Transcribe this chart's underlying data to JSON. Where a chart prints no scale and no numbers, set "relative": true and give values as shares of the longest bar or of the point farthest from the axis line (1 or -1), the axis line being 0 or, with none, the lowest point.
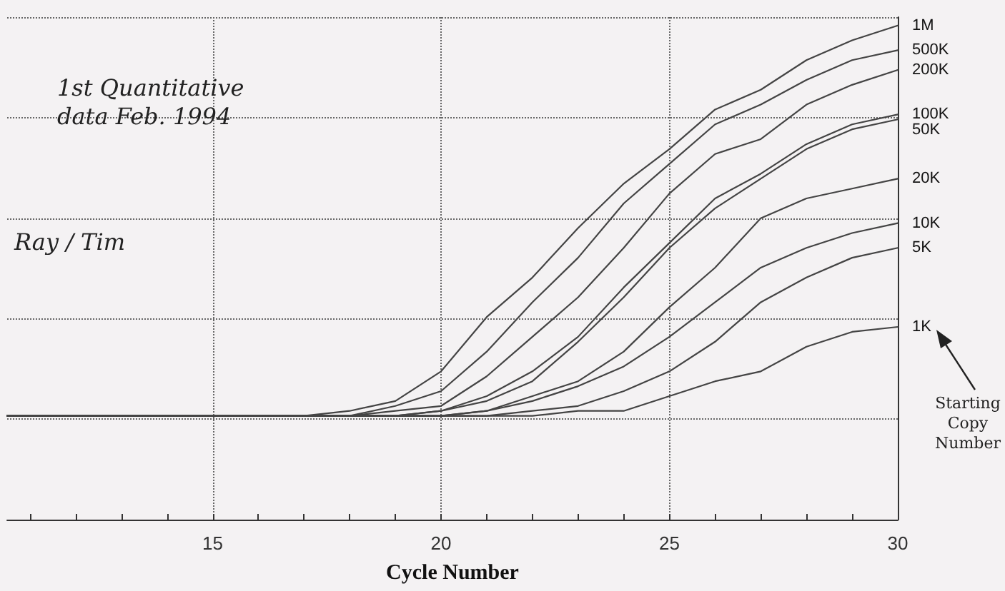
{
  "chart_data": {
    "type": "line",
    "relative": true,
    "xlabel": "Cycle Number",
    "x": [
      10.5,
      15,
      17,
      18,
      19,
      20,
      21,
      22,
      23,
      24,
      25,
      26,
      27,
      28,
      29,
      30
    ],
    "xlim": [
      10.5,
      30
    ],
    "xticks": [
      {
        "value": 11,
        "label": null
      },
      {
        "value": 12,
        "label": null
      },
      {
        "value": 13,
        "label": null
      },
      {
        "value": 14,
        "label": null
      },
      15,
      {
        "value": 16,
        "label": null
      },
      {
        "value": 17,
        "label": null
      },
      {
        "value": 18,
        "label": null
      },
      {
        "value": 19,
        "label": null
      },
      20,
      {
        "value": 21,
        "label": null
      },
      {
        "value": 22,
        "label": null
      },
      {
        "value": 23,
        "label": null
      },
      {
        "value": 24,
        "label": null
      },
      25,
      {
        "value": 26,
        "label": null
      },
      {
        "value": 27,
        "label": null
      },
      {
        "value": 28,
        "label": null
      },
      {
        "value": 29,
        "label": null
      },
      30
    ],
    "series": [
      {
        "name": "1M",
        "color": "#444444",
        "values": [
          0.21,
          0.21,
          0.21,
          0.22,
          0.24,
          0.3,
          0.41,
          0.49,
          0.59,
          0.68,
          0.75,
          0.83,
          0.87,
          0.93,
          0.97,
          1.0
        ]
      },
      {
        "name": "500K",
        "color": "#444444",
        "values": [
          0.21,
          0.21,
          0.21,
          0.21,
          0.23,
          0.26,
          0.34,
          0.44,
          0.53,
          0.64,
          0.72,
          0.8,
          0.84,
          0.89,
          0.93,
          0.95
        ]
      },
      {
        "name": "200K",
        "color": "#444444",
        "values": [
          0.21,
          0.21,
          0.21,
          0.21,
          0.22,
          0.23,
          0.29,
          0.37,
          0.45,
          0.55,
          0.66,
          0.74,
          0.77,
          0.84,
          0.88,
          0.91
        ]
      },
      {
        "name": "100K",
        "color": "#444444",
        "values": [
          0.21,
          0.21,
          0.21,
          0.21,
          0.21,
          0.22,
          0.25,
          0.3,
          0.37,
          0.47,
          0.56,
          0.65,
          0.7,
          0.76,
          0.8,
          0.82
        ]
      },
      {
        "name": "50K",
        "color": "#444444",
        "values": [
          0.21,
          0.21,
          0.21,
          0.21,
          0.21,
          0.22,
          0.24,
          0.28,
          0.36,
          0.45,
          0.55,
          0.63,
          0.69,
          0.75,
          0.79,
          0.81
        ]
      },
      {
        "name": "20K",
        "color": "#444444",
        "values": [
          0.21,
          0.21,
          0.21,
          0.21,
          0.21,
          0.21,
          0.22,
          0.25,
          0.28,
          0.34,
          0.43,
          0.51,
          0.61,
          0.65,
          0.67,
          0.69
        ]
      },
      {
        "name": "10K",
        "color": "#444444",
        "values": [
          0.21,
          0.21,
          0.21,
          0.21,
          0.21,
          0.21,
          0.22,
          0.24,
          0.27,
          0.31,
          0.37,
          0.44,
          0.51,
          0.55,
          0.58,
          0.6
        ]
      },
      {
        "name": "5K",
        "color": "#444444",
        "values": [
          0.21,
          0.21,
          0.21,
          0.21,
          0.21,
          0.21,
          0.21,
          0.22,
          0.23,
          0.26,
          0.3,
          0.36,
          0.44,
          0.49,
          0.53,
          0.55
        ]
      },
      {
        "name": "1K",
        "color": "#444444",
        "values": [
          0.21,
          0.21,
          0.21,
          0.21,
          0.21,
          0.21,
          0.21,
          0.21,
          0.22,
          0.22,
          0.25,
          0.28,
          0.3,
          0.35,
          0.38,
          0.39
        ]
      }
    ],
    "annotations": [
      "1st Quantitative data Feb. 1994",
      "Ray / Tim",
      "Starting Copy Number"
    ],
    "grid": true,
    "marker": "none",
    "line_style": "solid",
    "legend": false
  }
}
